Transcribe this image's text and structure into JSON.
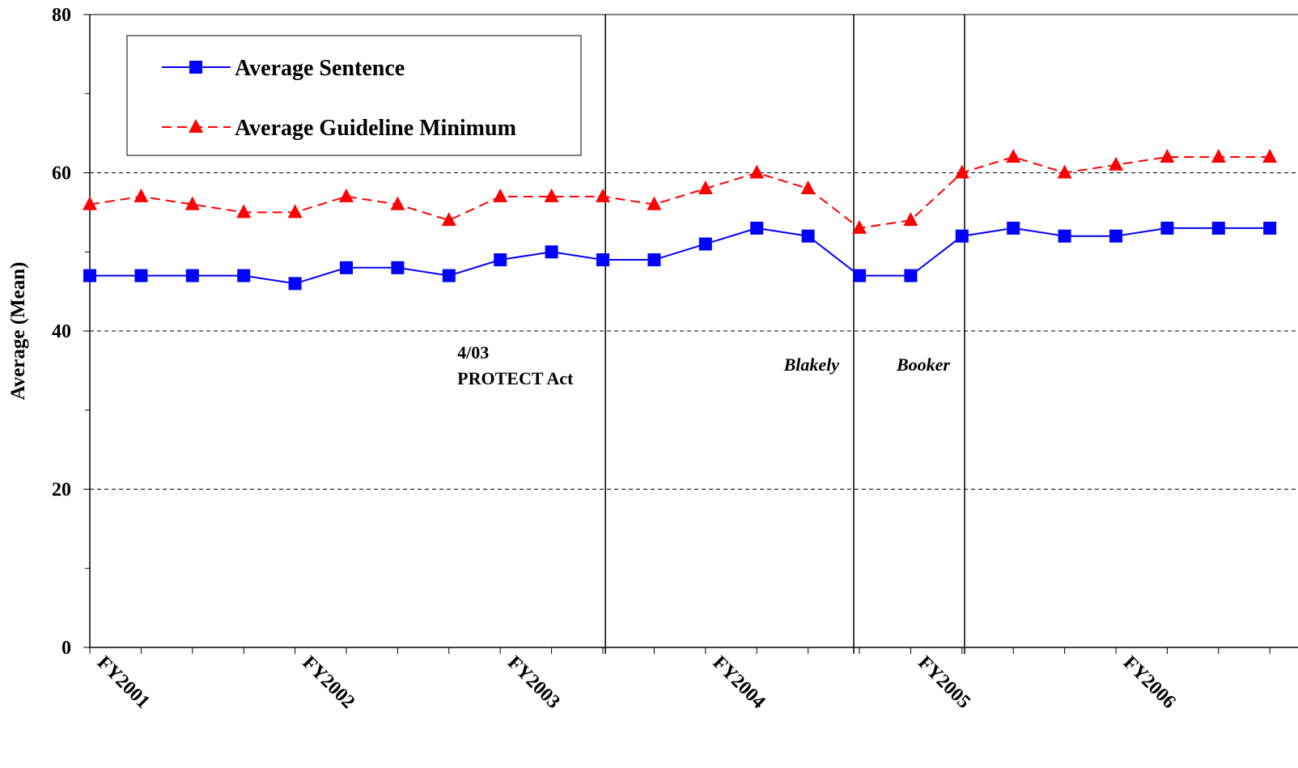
{
  "chart_data": {
    "type": "line",
    "y_label": "Average (Mean)",
    "categories": [
      "FY2001",
      null,
      null,
      null,
      "FY2002",
      null,
      null,
      null,
      "FY2003",
      null,
      null,
      null,
      "FY2004",
      null,
      null,
      null,
      "FY2005",
      null,
      null,
      null,
      "FY2006",
      null,
      null,
      null
    ],
    "series": [
      {
        "name": "Average Sentence",
        "color": "#0000ff",
        "marker": "square",
        "dash": false,
        "values": [
          47,
          47,
          47,
          47,
          46,
          48,
          48,
          47,
          49,
          50,
          49,
          49,
          51,
          53,
          52,
          47,
          47,
          52,
          53,
          52,
          52,
          53,
          53,
          53
        ]
      },
      {
        "name": "Average Guideline Minimum",
        "color": "#ff0000",
        "marker": "triangle",
        "dash": true,
        "values": [
          56,
          57,
          56,
          55,
          55,
          57,
          56,
          54,
          57,
          57,
          57,
          56,
          58,
          60,
          58,
          53,
          54,
          60,
          62,
          60,
          61,
          62,
          62,
          62
        ]
      }
    ],
    "ylim": [
      0,
      80
    ],
    "yticks": [
      0,
      20,
      40,
      60,
      80
    ],
    "grid": true,
    "annotations": [
      {
        "lines": [
          "4/03",
          "PROTECT Act"
        ],
        "style": "normal",
        "x": 10.05
      },
      {
        "lines": [
          "Blakely"
        ],
        "style": "italic",
        "x": 14.89
      },
      {
        "lines": [
          "Booker"
        ],
        "style": "italic",
        "x": 17.05
      }
    ]
  }
}
